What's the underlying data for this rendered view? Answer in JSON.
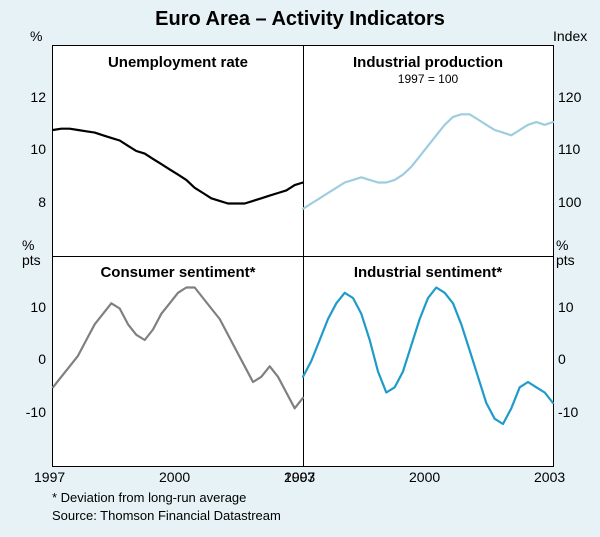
{
  "title": "Euro Area – Activity Indicators",
  "background_color": "#e6f2f5",
  "plot_background": "#ffffff",
  "border_color": "#000000",
  "panels": {
    "tl": {
      "title": "Unemployment rate",
      "axis_unit": "%",
      "axis_side": "left",
      "ylim": [
        6,
        14
      ],
      "yticks": [
        8,
        10,
        12
      ],
      "xlim": [
        1997,
        2003
      ],
      "line_color": "#000000",
      "line_width": 2.2,
      "data": [
        [
          1997.0,
          10.8
        ],
        [
          1997.2,
          10.85
        ],
        [
          1997.4,
          10.85
        ],
        [
          1997.6,
          10.8
        ],
        [
          1997.8,
          10.75
        ],
        [
          1998.0,
          10.7
        ],
        [
          1998.2,
          10.6
        ],
        [
          1998.4,
          10.5
        ],
        [
          1998.6,
          10.4
        ],
        [
          1998.8,
          10.2
        ],
        [
          1999.0,
          10.0
        ],
        [
          1999.2,
          9.9
        ],
        [
          1999.4,
          9.7
        ],
        [
          1999.6,
          9.5
        ],
        [
          1999.8,
          9.3
        ],
        [
          2000.0,
          9.1
        ],
        [
          2000.2,
          8.9
        ],
        [
          2000.4,
          8.6
        ],
        [
          2000.6,
          8.4
        ],
        [
          2000.8,
          8.2
        ],
        [
          2001.0,
          8.1
        ],
        [
          2001.2,
          8.0
        ],
        [
          2001.4,
          8.0
        ],
        [
          2001.6,
          8.0
        ],
        [
          2001.8,
          8.1
        ],
        [
          2002.0,
          8.2
        ],
        [
          2002.2,
          8.3
        ],
        [
          2002.4,
          8.4
        ],
        [
          2002.6,
          8.5
        ],
        [
          2002.8,
          8.7
        ],
        [
          2003.0,
          8.8
        ]
      ]
    },
    "tr": {
      "title": "Industrial production",
      "subtitle": "1997 = 100",
      "axis_unit": "Index",
      "axis_side": "right",
      "ylim": [
        90,
        130
      ],
      "yticks": [
        100,
        110,
        120
      ],
      "xlim": [
        1997,
        2003
      ],
      "line_color": "#9ecde0",
      "line_width": 2.2,
      "data": [
        [
          1997.0,
          99
        ],
        [
          1997.2,
          100
        ],
        [
          1997.4,
          101
        ],
        [
          1997.6,
          102
        ],
        [
          1997.8,
          103
        ],
        [
          1998.0,
          104
        ],
        [
          1998.2,
          104.5
        ],
        [
          1998.4,
          105
        ],
        [
          1998.6,
          104.5
        ],
        [
          1998.8,
          104
        ],
        [
          1999.0,
          104
        ],
        [
          1999.2,
          104.5
        ],
        [
          1999.4,
          105.5
        ],
        [
          1999.6,
          107
        ],
        [
          1999.8,
          109
        ],
        [
          2000.0,
          111
        ],
        [
          2000.2,
          113
        ],
        [
          2000.4,
          115
        ],
        [
          2000.6,
          116.5
        ],
        [
          2000.8,
          117
        ],
        [
          2001.0,
          117
        ],
        [
          2001.2,
          116
        ],
        [
          2001.4,
          115
        ],
        [
          2001.6,
          114
        ],
        [
          2001.8,
          113.5
        ],
        [
          2002.0,
          113
        ],
        [
          2002.2,
          114
        ],
        [
          2002.4,
          115
        ],
        [
          2002.6,
          115.5
        ],
        [
          2002.8,
          115
        ],
        [
          2003.0,
          115.5
        ]
      ]
    },
    "bl": {
      "title": "Consumer sentiment*",
      "axis_unit": "% pts",
      "axis_side": "left",
      "ylim": [
        -20,
        20
      ],
      "yticks": [
        -10,
        0,
        10
      ],
      "xlim": [
        1997,
        2003
      ],
      "line_color": "#808080",
      "line_width": 2.2,
      "data": [
        [
          1997.0,
          -5
        ],
        [
          1997.2,
          -3
        ],
        [
          1997.4,
          -1
        ],
        [
          1997.6,
          1
        ],
        [
          1997.8,
          4
        ],
        [
          1998.0,
          7
        ],
        [
          1998.2,
          9
        ],
        [
          1998.4,
          11
        ],
        [
          1998.6,
          10
        ],
        [
          1998.8,
          7
        ],
        [
          1999.0,
          5
        ],
        [
          1999.2,
          4
        ],
        [
          1999.4,
          6
        ],
        [
          1999.6,
          9
        ],
        [
          1999.8,
          11
        ],
        [
          2000.0,
          13
        ],
        [
          2000.2,
          14
        ],
        [
          2000.4,
          14
        ],
        [
          2000.6,
          12
        ],
        [
          2000.8,
          10
        ],
        [
          2001.0,
          8
        ],
        [
          2001.2,
          5
        ],
        [
          2001.4,
          2
        ],
        [
          2001.6,
          -1
        ],
        [
          2001.8,
          -4
        ],
        [
          2002.0,
          -3
        ],
        [
          2002.2,
          -1
        ],
        [
          2002.4,
          -3
        ],
        [
          2002.6,
          -6
        ],
        [
          2002.8,
          -9
        ],
        [
          2003.0,
          -7
        ]
      ]
    },
    "br": {
      "title": "Industrial sentiment*",
      "axis_unit": "% pts",
      "axis_side": "right",
      "ylim": [
        -20,
        20
      ],
      "yticks": [
        -10,
        0,
        10
      ],
      "xlim": [
        1997,
        2003
      ],
      "line_color": "#1e9bc8",
      "line_width": 2.2,
      "data": [
        [
          1997.0,
          -3
        ],
        [
          1997.2,
          0
        ],
        [
          1997.4,
          4
        ],
        [
          1997.6,
          8
        ],
        [
          1997.8,
          11
        ],
        [
          1998.0,
          13
        ],
        [
          1998.2,
          12
        ],
        [
          1998.4,
          9
        ],
        [
          1998.6,
          4
        ],
        [
          1998.8,
          -2
        ],
        [
          1999.0,
          -6
        ],
        [
          1999.2,
          -5
        ],
        [
          1999.4,
          -2
        ],
        [
          1999.6,
          3
        ],
        [
          1999.8,
          8
        ],
        [
          2000.0,
          12
        ],
        [
          2000.2,
          14
        ],
        [
          2000.4,
          13
        ],
        [
          2000.6,
          11
        ],
        [
          2000.8,
          7
        ],
        [
          2001.0,
          2
        ],
        [
          2001.2,
          -3
        ],
        [
          2001.4,
          -8
        ],
        [
          2001.6,
          -11
        ],
        [
          2001.8,
          -12
        ],
        [
          2002.0,
          -9
        ],
        [
          2002.2,
          -5
        ],
        [
          2002.4,
          -4
        ],
        [
          2002.6,
          -5
        ],
        [
          2002.8,
          -6
        ],
        [
          2003.0,
          -8
        ]
      ]
    }
  },
  "x_ticks": [
    "1997",
    "2000",
    "2003"
  ],
  "footnote": "*   Deviation from long-run average",
  "source": "Source: Thomson Financial Datastream"
}
